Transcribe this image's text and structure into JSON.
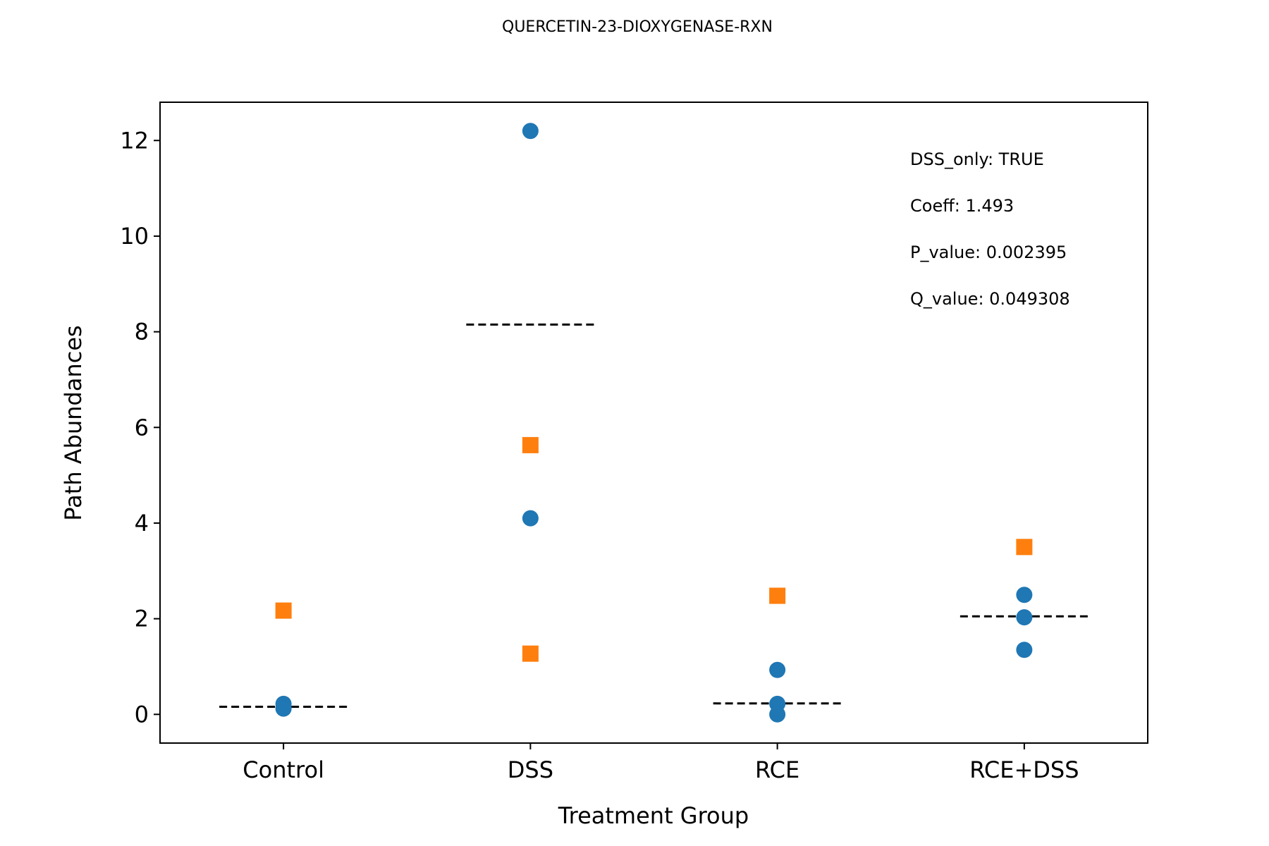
{
  "chart_data": {
    "type": "scatter",
    "title": "QUERCETIN-23-DIOXYGENASE-RXN",
    "xlabel": "Treatment Group",
    "ylabel": "Path Abundances",
    "categories": [
      "Control",
      "DSS",
      "RCE",
      "RCE+DSS"
    ],
    "ylim": [
      -0.6,
      12.8
    ],
    "yticks": [
      0,
      2,
      4,
      6,
      8,
      10,
      12
    ],
    "grid": false,
    "series": [
      {
        "marker": "circle",
        "color": "#1f77b4",
        "points": [
          {
            "category": "Control",
            "y": 0.22
          },
          {
            "category": "Control",
            "y": 0.12
          },
          {
            "category": "DSS",
            "y": 12.2
          },
          {
            "category": "DSS",
            "y": 4.1
          },
          {
            "category": "RCE",
            "y": 0.93
          },
          {
            "category": "RCE",
            "y": 0.22
          },
          {
            "category": "RCE",
            "y": 0.0
          },
          {
            "category": "RCE+DSS",
            "y": 2.5
          },
          {
            "category": "RCE+DSS",
            "y": 2.03
          },
          {
            "category": "RCE+DSS",
            "y": 1.35
          }
        ]
      },
      {
        "marker": "square",
        "color": "#ff7f0e",
        "points": [
          {
            "category": "Control",
            "y": 2.17
          },
          {
            "category": "DSS",
            "y": 5.63
          },
          {
            "category": "DSS",
            "y": 1.27
          },
          {
            "category": "RCE",
            "y": 2.48
          },
          {
            "category": "RCE+DSS",
            "y": 3.5
          }
        ]
      }
    ],
    "group_lines": [
      {
        "category": "Control",
        "y": 0.16
      },
      {
        "category": "DSS",
        "y": 8.15
      },
      {
        "category": "RCE",
        "y": 0.23
      },
      {
        "category": "RCE+DSS",
        "y": 2.05
      }
    ],
    "annotations": [
      "DSS_only: TRUE",
      "Coeff: 1.493",
      "P_value: 0.002395",
      "Q_value: 0.049308"
    ]
  }
}
